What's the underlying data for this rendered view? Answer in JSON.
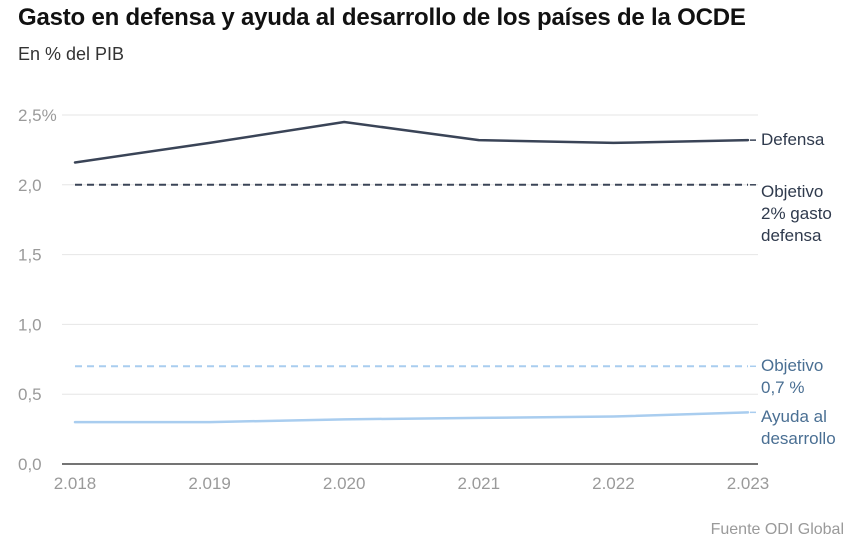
{
  "title": "Gasto en defensa y ayuda al desarrollo de los países de la OCDE",
  "subtitle": "En % del PIB",
  "source": "Fuente ODI Global",
  "chart_data": {
    "type": "line",
    "x": [
      "2.018",
      "2.019",
      "2.020",
      "2.021",
      "2.022",
      "2.023"
    ],
    "ylim": [
      0,
      2.5
    ],
    "yticks": [
      {
        "value": 0,
        "label": "0,0"
      },
      {
        "value": 0.5,
        "label": "0,5"
      },
      {
        "value": 1.0,
        "label": "1,0"
      },
      {
        "value": 1.5,
        "label": "1,5"
      },
      {
        "value": 2.0,
        "label": "2,0"
      },
      {
        "value": 2.5,
        "label": "2,5%"
      }
    ],
    "grid": true,
    "series": [
      {
        "name": "Defensa",
        "label_lines": [
          "Defensa"
        ],
        "style": "solid",
        "color": "#3a4457",
        "values": [
          2.16,
          2.3,
          2.45,
          2.32,
          2.3,
          2.32
        ]
      },
      {
        "name": "Objetivo 2% gasto defensa",
        "label_lines": [
          "Objetivo",
          "2% gasto",
          "defensa"
        ],
        "style": "dashed",
        "color": "#3a4457",
        "values": [
          2.0,
          2.0,
          2.0,
          2.0,
          2.0,
          2.0
        ]
      },
      {
        "name": "Objetivo 0,7 %",
        "label_lines": [
          "Objetivo",
          "0,7 %"
        ],
        "style": "dashed",
        "color": "#a9cdef",
        "values": [
          0.7,
          0.7,
          0.7,
          0.7,
          0.7,
          0.7
        ]
      },
      {
        "name": "Ayuda al desarrollo",
        "label_lines": [
          "Ayuda al",
          "desarrollo"
        ],
        "style": "solid",
        "color": "#a9cdef",
        "values": [
          0.3,
          0.3,
          0.32,
          0.33,
          0.34,
          0.37
        ]
      }
    ]
  }
}
